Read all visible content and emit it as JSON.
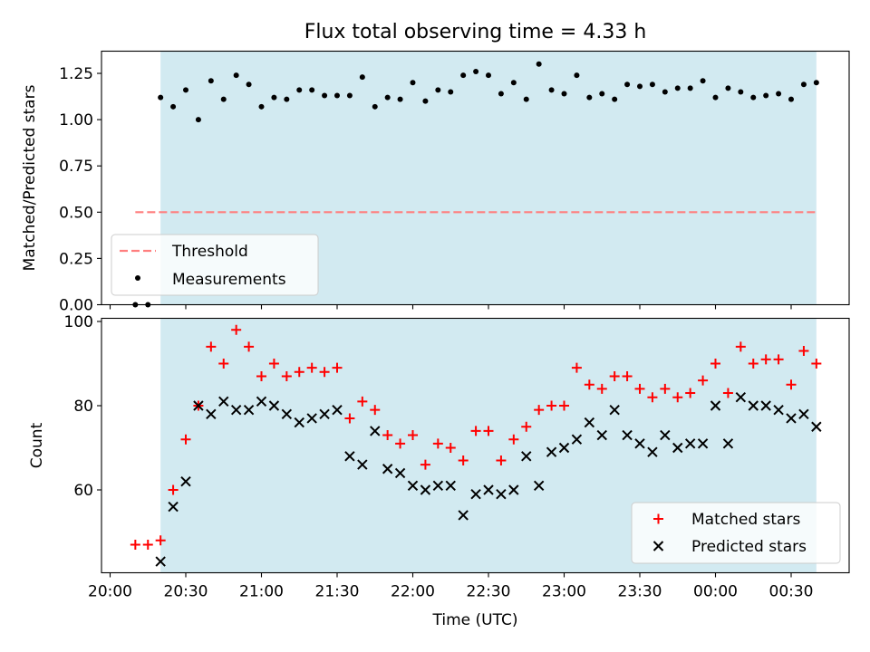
{
  "title": "Flux total observing time = 4.33 h",
  "chart_data": [
    {
      "type": "scatter",
      "panel": "top",
      "ylabel": "Matched/Predicted stars",
      "ylim": [
        0.0,
        1.37
      ],
      "yticks": [
        "0.00",
        "0.25",
        "0.50",
        "0.75",
        "1.00",
        "1.25"
      ],
      "grid": false,
      "legend_position": "lower-left",
      "shaded_span": {
        "x_start": "20:20",
        "x_end": "00:40",
        "color": "#add8e6"
      },
      "threshold": {
        "name": "Threshold",
        "value": 0.5,
        "x_start": "20:10",
        "x_end": "00:40",
        "color": "#ff7f7f",
        "style": "dashed"
      },
      "series": [
        {
          "name": "Measurements",
          "color": "#000000",
          "marker": "dot",
          "x": [
            "20:10",
            "20:15",
            "20:20",
            "20:25",
            "20:30",
            "20:35",
            "20:40",
            "20:45",
            "20:50",
            "20:55",
            "21:00",
            "21:05",
            "21:10",
            "21:15",
            "21:20",
            "21:25",
            "21:30",
            "21:35",
            "21:40",
            "21:45",
            "21:50",
            "21:55",
            "22:00",
            "22:05",
            "22:10",
            "22:15",
            "22:20",
            "22:25",
            "22:30",
            "22:35",
            "22:40",
            "22:45",
            "22:50",
            "22:55",
            "23:00",
            "23:05",
            "23:10",
            "23:15",
            "23:20",
            "23:25",
            "23:30",
            "23:35",
            "23:40",
            "23:45",
            "23:50",
            "23:55",
            "00:00",
            "00:05",
            "00:10",
            "00:15",
            "00:20",
            "00:25",
            "00:30",
            "00:35",
            "00:40"
          ],
          "values": [
            0.0,
            0.0,
            1.12,
            1.07,
            1.16,
            1.0,
            1.21,
            1.11,
            1.24,
            1.19,
            1.07,
            1.12,
            1.11,
            1.16,
            1.16,
            1.13,
            1.13,
            1.13,
            1.23,
            1.07,
            1.12,
            1.11,
            1.2,
            1.1,
            1.16,
            1.15,
            1.24,
            1.26,
            1.24,
            1.14,
            1.2,
            1.11,
            1.3,
            1.16,
            1.14,
            1.24,
            1.12,
            1.14,
            1.11,
            1.19,
            1.18,
            1.19,
            1.15,
            1.17,
            1.17,
            1.21,
            1.12,
            1.17,
            1.15,
            1.12,
            1.13,
            1.14,
            1.11,
            1.19,
            1.2
          ]
        }
      ]
    },
    {
      "type": "scatter",
      "panel": "bottom",
      "xlabel": "Time (UTC)",
      "ylabel": "Count",
      "ylim": [
        40.5,
        100
      ],
      "yticks": [
        "60",
        "80",
        "100"
      ],
      "xticks": [
        "20:00",
        "20:30",
        "21:00",
        "21:30",
        "22:00",
        "22:30",
        "23:00",
        "23:30",
        "00:00",
        "00:30"
      ],
      "grid": false,
      "legend_position": "lower-right",
      "shaded_span": {
        "x_start": "20:20",
        "x_end": "00:40",
        "color": "#add8e6"
      },
      "series": [
        {
          "name": "Matched stars",
          "color": "#ff0000",
          "marker": "plus",
          "x": [
            "20:10",
            "20:15",
            "20:20",
            "20:25",
            "20:30",
            "20:35",
            "20:40",
            "20:45",
            "20:50",
            "20:55",
            "21:00",
            "21:05",
            "21:10",
            "21:15",
            "21:20",
            "21:25",
            "21:30",
            "21:35",
            "21:40",
            "21:45",
            "21:50",
            "21:55",
            "22:00",
            "22:05",
            "22:10",
            "22:15",
            "22:20",
            "22:25",
            "22:30",
            "22:35",
            "22:40",
            "22:45",
            "22:50",
            "22:55",
            "23:00",
            "23:05",
            "23:10",
            "23:15",
            "23:20",
            "23:25",
            "23:30",
            "23:35",
            "23:40",
            "23:45",
            "23:50",
            "23:55",
            "00:00",
            "00:05",
            "00:10",
            "00:15",
            "00:20",
            "00:25",
            "00:30",
            "00:35",
            "00:40"
          ],
          "values": [
            47,
            47,
            48,
            60,
            72,
            80,
            94,
            90,
            98,
            94,
            87,
            90,
            87,
            88,
            89,
            88,
            89,
            77,
            81,
            79,
            73,
            71,
            73,
            66,
            71,
            70,
            67,
            74,
            74,
            67,
            72,
            75,
            79,
            80,
            80,
            89,
            85,
            84,
            87,
            87,
            84,
            82,
            84,
            82,
            83,
            86,
            90,
            83,
            94,
            90,
            91,
            91,
            85,
            93,
            90
          ]
        },
        {
          "name": "Predicted stars",
          "color": "#000000",
          "marker": "x",
          "x": [
            "20:20",
            "20:25",
            "20:30",
            "20:35",
            "20:40",
            "20:45",
            "20:50",
            "20:55",
            "21:00",
            "21:05",
            "21:10",
            "21:15",
            "21:20",
            "21:25",
            "21:30",
            "21:35",
            "21:40",
            "21:45",
            "21:50",
            "21:55",
            "22:00",
            "22:05",
            "22:10",
            "22:15",
            "22:20",
            "22:25",
            "22:30",
            "22:35",
            "22:40",
            "22:45",
            "22:50",
            "22:55",
            "23:00",
            "23:05",
            "23:10",
            "23:15",
            "23:20",
            "23:25",
            "23:30",
            "23:35",
            "23:40",
            "23:45",
            "23:50",
            "23:55",
            "00:00",
            "00:05",
            "00:10",
            "00:15",
            "00:20",
            "00:25",
            "00:30",
            "00:35",
            "00:40"
          ],
          "values": [
            43,
            56,
            62,
            80,
            78,
            81,
            79,
            79,
            81,
            80,
            78,
            76,
            77,
            78,
            79,
            68,
            66,
            74,
            65,
            64,
            61,
            60,
            61,
            61,
            54,
            59,
            60,
            59,
            60,
            68,
            61,
            69,
            70,
            72,
            76,
            73,
            79,
            73,
            71,
            69,
            73,
            70,
            71,
            71,
            80,
            71,
            82,
            80,
            80,
            79,
            77,
            78,
            75
          ]
        }
      ]
    }
  ]
}
